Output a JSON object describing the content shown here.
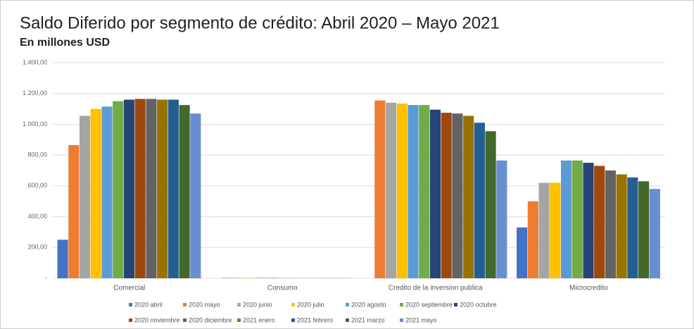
{
  "chart_data": {
    "type": "bar",
    "title": "Saldo Diferido por segmento de crédito: Abril 2020 – Mayo 2021",
    "subtitle": "En millones USD",
    "categories": [
      "Comercial",
      "Consumo",
      "Credito de la inversion publica",
      "Microcredito"
    ],
    "ylim": [
      0,
      1400
    ],
    "yticks": [
      {
        "value": 0,
        "label": "-"
      },
      {
        "value": 200,
        "label": "200,00"
      },
      {
        "value": 400,
        "label": "400,00"
      },
      {
        "value": 600,
        "label": "600,00"
      },
      {
        "value": 800,
        "label": "800,00"
      },
      {
        "value": 1000,
        "label": "1.000,00"
      },
      {
        "value": 1200,
        "label": "1.200,00"
      },
      {
        "value": 1400,
        "label": "1.400,00"
      }
    ],
    "grid": true,
    "series": [
      {
        "name": "2020 abril",
        "color": "#4472c4",
        "values": [
          250,
          0,
          0,
          330
        ]
      },
      {
        "name": "2020 mayo",
        "color": "#ed7d31",
        "values": [
          865,
          3,
          1155,
          500
        ]
      },
      {
        "name": "2020 junio",
        "color": "#a5a5a5",
        "values": [
          1055,
          3,
          1140,
          620
        ]
      },
      {
        "name": "2020 julio",
        "color": "#ffc000",
        "values": [
          1100,
          3,
          1135,
          620
        ]
      },
      {
        "name": "2020 agosto",
        "color": "#5b9bd5",
        "values": [
          1115,
          3,
          1125,
          765
        ]
      },
      {
        "name": "2020 septiembre",
        "color": "#70ad47",
        "values": [
          1150,
          3,
          1125,
          765
        ]
      },
      {
        "name": "2020 octubre",
        "color": "#264478",
        "values": [
          1160,
          1,
          1095,
          750
        ]
      },
      {
        "name": "2020 noviembre",
        "color": "#9e480e",
        "values": [
          1165,
          1,
          1075,
          730
        ]
      },
      {
        "name": "2020 diciembre",
        "color": "#636363",
        "values": [
          1165,
          1,
          1070,
          700
        ]
      },
      {
        "name": "2021 enero",
        "color": "#997300",
        "values": [
          1160,
          1,
          1055,
          675
        ]
      },
      {
        "name": "2021 febrero",
        "color": "#255e91",
        "values": [
          1160,
          1,
          1010,
          655
        ]
      },
      {
        "name": "2021 marzo",
        "color": "#43682b",
        "values": [
          1125,
          1,
          955,
          630
        ]
      },
      {
        "name": "2021 mayo",
        "color": "#698ed0",
        "values": [
          1070,
          1,
          765,
          580
        ]
      }
    ]
  }
}
